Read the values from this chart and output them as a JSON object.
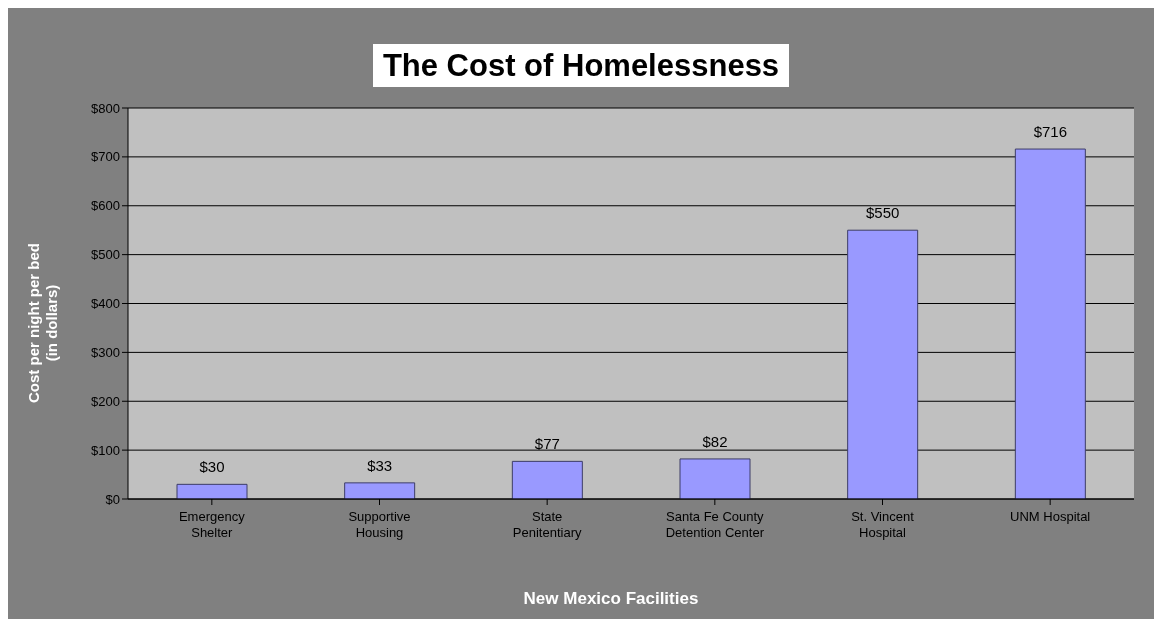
{
  "chart_data": {
    "type": "bar",
    "title": "The Cost of Homelessness",
    "xlabel": "New Mexico Facilities",
    "ylabel": "Cost per night per bed\n(in dollars)",
    "categories": [
      "Emergency Shelter",
      "Supportive Housing",
      "State Penitentiary",
      "Santa Fe County Detention Center",
      "St. Vincent Hospital",
      "UNM Hospital"
    ],
    "values": [
      30,
      33,
      77,
      82,
      550,
      716
    ],
    "value_labels": [
      "$30",
      "$33",
      "$77",
      "$82",
      "$550",
      "$716"
    ],
    "color": "#9999ff",
    "ylim": [
      0,
      800
    ],
    "yticks": [
      {
        "value": 0,
        "label": "$0"
      },
      {
        "value": 100,
        "label": "$100"
      },
      {
        "value": 200,
        "label": "$200"
      },
      {
        "value": 300,
        "label": "$300"
      },
      {
        "value": 400,
        "label": "$400"
      },
      {
        "value": 500,
        "label": "$500"
      },
      {
        "value": 600,
        "label": "$600"
      },
      {
        "value": 700,
        "label": "$700"
      },
      {
        "value": 800,
        "label": "$800"
      }
    ],
    "grid": "y"
  }
}
